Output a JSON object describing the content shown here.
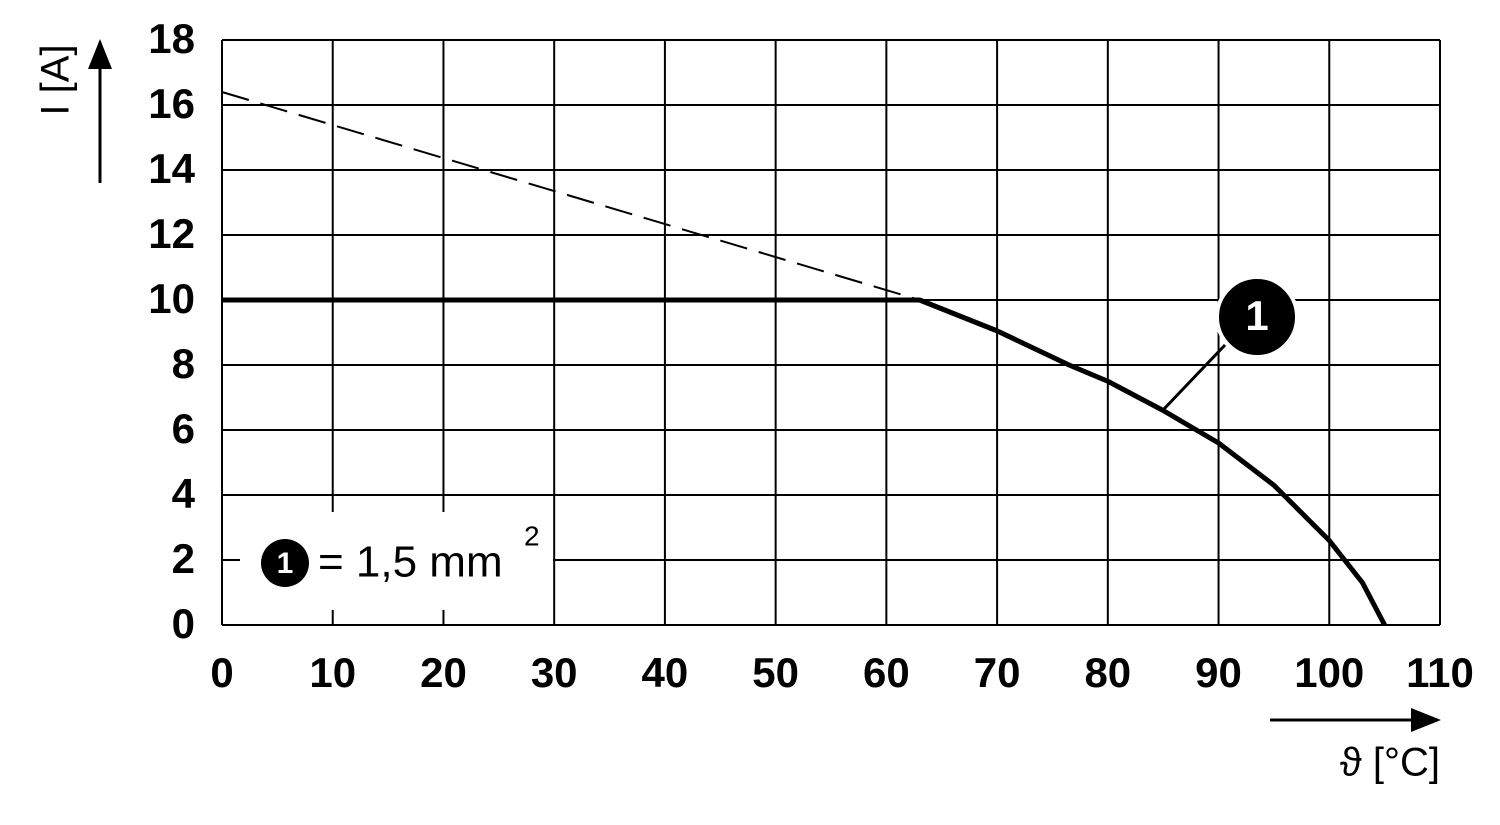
{
  "chart_data": {
    "type": "line",
    "y_label": "I [A]",
    "x_label": "ϑ [°C]",
    "xlim": [
      0,
      110
    ],
    "xticks": [
      0,
      10,
      20,
      30,
      40,
      50,
      60,
      70,
      80,
      90,
      100,
      110
    ],
    "ylim": [
      0,
      18
    ],
    "yticks": [
      0,
      2,
      4,
      6,
      8,
      10,
      12,
      14,
      16,
      18
    ],
    "grid": true,
    "series": [
      {
        "style": "solid",
        "color": "#000000",
        "x": [
          0,
          63,
          70,
          76.5,
          80,
          85,
          90,
          95,
          100,
          103,
          105
        ],
        "values": [
          10,
          10,
          9.05,
          8.0,
          7.5,
          6.6,
          5.6,
          4.3,
          2.6,
          1.3,
          0
        ]
      },
      {
        "style": "dashed",
        "color": "#000000",
        "x": [
          0,
          63
        ],
        "values": [
          16.4,
          10
        ]
      }
    ],
    "annotation": "1",
    "legend": {
      "marker": "1",
      "text": "= 1,5 mm",
      "superscript": "2"
    }
  }
}
